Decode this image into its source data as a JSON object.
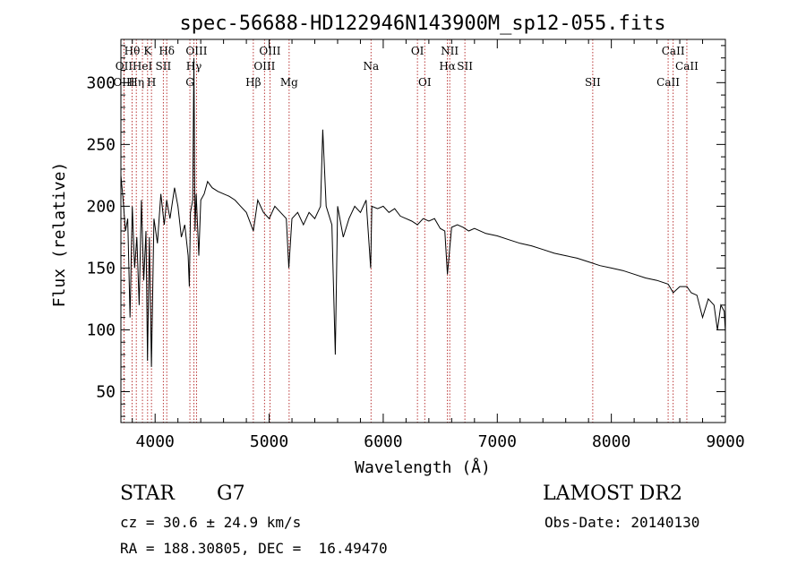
{
  "chart_data": {
    "type": "line",
    "title": "spec-56688-HD122946N143900M_sp12-055.fits",
    "xlabel": "Wavelength (Å)",
    "ylabel": "Flux (relative)",
    "xlim": [
      3700,
      9000
    ],
    "ylim": [
      25,
      335
    ],
    "xticks": [
      4000,
      5000,
      6000,
      7000,
      8000,
      9000
    ],
    "yticks": [
      50,
      100,
      150,
      200,
      250,
      300
    ],
    "grid": false,
    "series": [
      {
        "name": "spectrum",
        "x": [
          3700,
          3720,
          3740,
          3760,
          3780,
          3800,
          3820,
          3840,
          3860,
          3880,
          3900,
          3920,
          3933,
          3950,
          3968,
          3990,
          4020,
          4050,
          4080,
          4101,
          4130,
          4170,
          4200,
          4230,
          4260,
          4290,
          4300,
          4310,
          4330,
          4340,
          4350,
          4360,
          4383,
          4400,
          4430,
          4460,
          4500,
          4550,
          4600,
          4650,
          4700,
          4750,
          4800,
          4861,
          4900,
          4950,
          5000,
          5050,
          5100,
          5150,
          5172,
          5200,
          5250,
          5300,
          5350,
          5400,
          5450,
          5470,
          5500,
          5550,
          5580,
          5600,
          5650,
          5700,
          5750,
          5800,
          5850,
          5890,
          5900,
          5950,
          6000,
          6050,
          6100,
          6150,
          6200,
          6250,
          6300,
          6350,
          6400,
          6450,
          6500,
          6540,
          6563,
          6600,
          6650,
          6700,
          6750,
          6800,
          6900,
          7000,
          7100,
          7200,
          7300,
          7400,
          7500,
          7600,
          7700,
          7800,
          7900,
          8000,
          8100,
          8200,
          8300,
          8400,
          8498,
          8542,
          8600,
          8662,
          8700,
          8750,
          8800,
          8850,
          8900,
          8930,
          8960,
          8990,
          9000
        ],
        "values": [
          225,
          205,
          180,
          190,
          110,
          200,
          150,
          175,
          120,
          205,
          140,
          180,
          75,
          175,
          70,
          190,
          170,
          210,
          185,
          205,
          190,
          215,
          200,
          175,
          185,
          160,
          135,
          195,
          205,
          320,
          180,
          210,
          160,
          205,
          210,
          220,
          215,
          212,
          210,
          208,
          205,
          200,
          195,
          180,
          205,
          195,
          190,
          200,
          195,
          190,
          150,
          190,
          195,
          185,
          195,
          190,
          200,
          262,
          200,
          185,
          80,
          200,
          175,
          190,
          200,
          195,
          205,
          150,
          200,
          198,
          200,
          195,
          198,
          192,
          190,
          188,
          185,
          190,
          188,
          190,
          182,
          180,
          145,
          183,
          185,
          183,
          180,
          182,
          178,
          176,
          173,
          170,
          168,
          165,
          162,
          160,
          158,
          155,
          152,
          150,
          148,
          145,
          142,
          140,
          137,
          130,
          135,
          135,
          130,
          128,
          110,
          125,
          120,
          100,
          120,
          115,
          98
        ]
      }
    ],
    "line_markers": [
      {
        "label": "Hθ",
        "x": 3798,
        "row": 1
      },
      {
        "label": "OII",
        "x": 3727,
        "row": 2
      },
      {
        "label": "OIII",
        "x": 3727,
        "row": 3
      },
      {
        "label": "Hη",
        "x": 3835,
        "row": 3
      },
      {
        "label": "HeI",
        "x": 3889,
        "row": 2
      },
      {
        "label": "K",
        "x": 3934,
        "row": 1
      },
      {
        "label": "SII",
        "x": 4072,
        "row": 2
      },
      {
        "label": "H",
        "x": 3968,
        "row": 3
      },
      {
        "label": "Hδ",
        "x": 4102,
        "row": 1
      },
      {
        "label": "OIII",
        "x": 4363,
        "row": 1
      },
      {
        "label": "Hγ",
        "x": 4340,
        "row": 2
      },
      {
        "label": "G",
        "x": 4305,
        "row": 3
      },
      {
        "label": "OIII",
        "x": 5007,
        "row": 1
      },
      {
        "label": "OIII",
        "x": 4959,
        "row": 2
      },
      {
        "label": "Hβ",
        "x": 4861,
        "row": 3
      },
      {
        "label": "Mg",
        "x": 5175,
        "row": 3
      },
      {
        "label": "Na",
        "x": 5893,
        "row": 2
      },
      {
        "label": "OI",
        "x": 6300,
        "row": 1
      },
      {
        "label": "OI",
        "x": 6364,
        "row": 3
      },
      {
        "label": "NII",
        "x": 6583,
        "row": 1
      },
      {
        "label": "Hα",
        "x": 6563,
        "row": 2
      },
      {
        "label": "SII",
        "x": 6716,
        "row": 2
      },
      {
        "label": "SII",
        "x": 7837,
        "row": 3
      },
      {
        "label": "CaII",
        "x": 8542,
        "row": 1
      },
      {
        "label": "CaII",
        "x": 8662,
        "row": 2
      },
      {
        "label": "CaII",
        "x": 8498,
        "row": 3
      }
    ]
  },
  "info": {
    "object_type": "STAR",
    "subclass": "G7",
    "cz": "cz = 30.6 ± 24.9 km/s",
    "coords": "RA = 188.30805, DEC =  16.49470",
    "survey": "LAMOST DR2",
    "obs_date": "Obs-Date: 20140130"
  },
  "colors": {
    "marker_line": "#b22222",
    "spectrum": "#000000",
    "axis": "#000000"
  }
}
